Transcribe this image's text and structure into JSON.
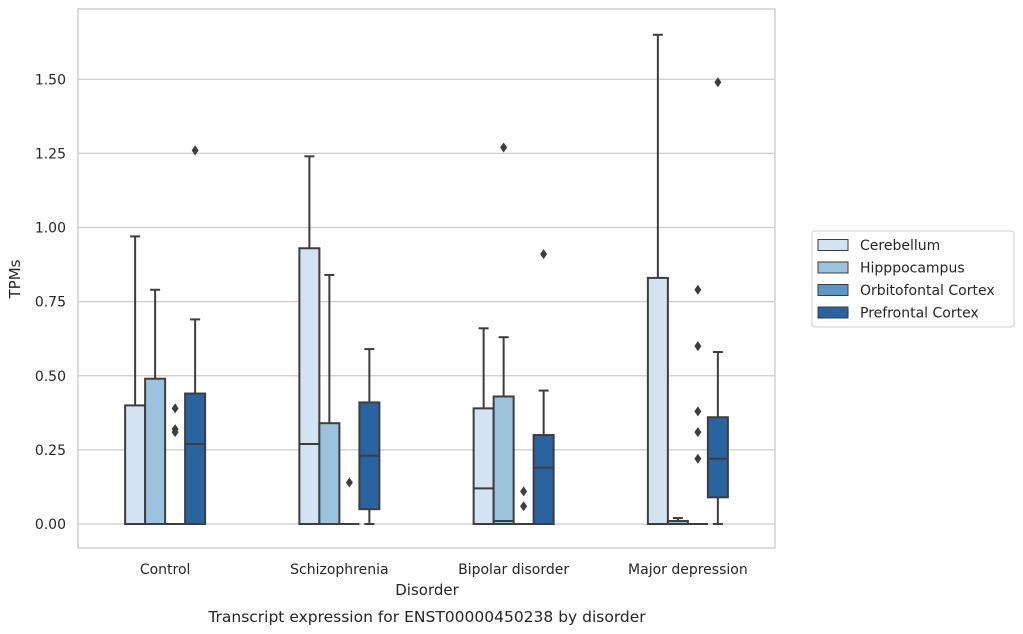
{
  "chart_data": {
    "type": "box",
    "caption": "Transcript expression for ENST00000450238 by disorder",
    "xlabel": "Disorder",
    "ylabel": "TPMs",
    "ylim": [
      -0.08,
      1.74
    ],
    "yticks": [
      "0.00",
      "0.25",
      "0.50",
      "0.75",
      "1.00",
      "1.25",
      "1.50"
    ],
    "categories": [
      "Control",
      "Schizophrenia",
      "Bipolar disorder",
      "Major depression"
    ],
    "grid": "horizontal",
    "legend_position": "right",
    "series": [
      {
        "name": "Cerebellum",
        "color": "#d3e3f1",
        "boxes": [
          {
            "min": 0,
            "q1": 0,
            "median": 0,
            "q3": 0.4,
            "max": 0.97,
            "outliers": []
          },
          {
            "min": 0,
            "q1": 0,
            "median": 0.27,
            "q3": 0.93,
            "max": 1.24,
            "outliers": []
          },
          {
            "min": 0,
            "q1": 0,
            "median": 0.12,
            "q3": 0.39,
            "max": 0.66,
            "outliers": []
          },
          {
            "min": 0,
            "q1": 0,
            "median": 0,
            "q3": 0.83,
            "max": 1.65,
            "outliers": []
          }
        ]
      },
      {
        "name": "Hipppocampus",
        "color": "#9cc3dd",
        "boxes": [
          {
            "min": 0,
            "q1": 0,
            "median": 0,
            "q3": 0.49,
            "max": 0.79,
            "outliers": []
          },
          {
            "min": 0,
            "q1": 0,
            "median": 0,
            "q3": 0.34,
            "max": 0.84,
            "outliers": []
          },
          {
            "min": 0,
            "q1": 0,
            "median": 0.01,
            "q3": 0.43,
            "max": 0.63,
            "outliers": [
              1.27
            ]
          },
          {
            "min": 0,
            "q1": 0,
            "median": 0,
            "q3": 0.01,
            "max": 0.02,
            "outliers": []
          }
        ]
      },
      {
        "name": "Orbitofontal Cortex",
        "color": "#5b98c5",
        "boxes": [
          {
            "min": 0,
            "q1": 0,
            "median": 0,
            "q3": 0,
            "max": 0,
            "outliers": [
              0.31,
              0.32,
              0.39
            ]
          },
          {
            "min": 0,
            "q1": 0,
            "median": 0,
            "q3": 0,
            "max": 0,
            "outliers": [
              0.14
            ]
          },
          {
            "min": 0,
            "q1": 0,
            "median": 0,
            "q3": 0,
            "max": 0,
            "outliers": [
              0.06,
              0.11
            ]
          },
          {
            "min": 0,
            "q1": 0,
            "median": 0,
            "q3": 0,
            "max": 0,
            "outliers": [
              0.22,
              0.31,
              0.38,
              0.6,
              0.79
            ]
          }
        ]
      },
      {
        "name": "Prefrontal Cortex",
        "color": "#2a64a0",
        "boxes": [
          {
            "min": 0,
            "q1": 0,
            "median": 0.27,
            "q3": 0.44,
            "max": 0.69,
            "outliers": [
              1.26
            ]
          },
          {
            "min": 0,
            "q1": 0.05,
            "median": 0.23,
            "q3": 0.41,
            "max": 0.59,
            "outliers": []
          },
          {
            "min": 0,
            "q1": 0,
            "median": 0.19,
            "q3": 0.3,
            "max": 0.45,
            "outliers": [
              0.91
            ]
          },
          {
            "min": 0,
            "q1": 0.09,
            "median": 0.22,
            "q3": 0.36,
            "max": 0.58,
            "outliers": [
              1.49
            ]
          }
        ]
      }
    ]
  }
}
